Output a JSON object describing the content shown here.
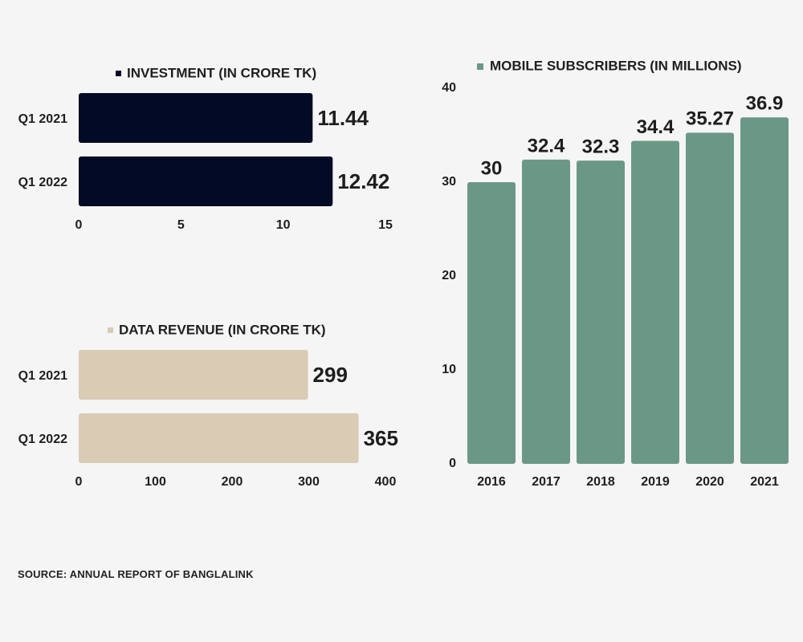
{
  "source": "SOURCE: ANNUAL REPORT OF BANGLALINK",
  "colors": {
    "investment": "#020a26",
    "data_revenue": "#d9cbb4",
    "subscribers": "#6b9886",
    "text": "#1e1e1e"
  },
  "chart_data": [
    {
      "id": "investment",
      "type": "bar",
      "orientation": "horizontal",
      "legend": "INVESTMENT (IN CRORE TK)",
      "categories": [
        "Q1 2021",
        "Q1 2022"
      ],
      "values": [
        11.44,
        12.42
      ],
      "value_labels": [
        "11.44",
        "12.42"
      ],
      "xlim": [
        0,
        15
      ],
      "xticks": [
        "0",
        "5",
        "10",
        "15"
      ],
      "grid": false
    },
    {
      "id": "data_revenue",
      "type": "bar",
      "orientation": "horizontal",
      "legend": "DATA REVENUE (IN CRORE TK)",
      "categories": [
        "Q1 2021",
        "Q1 2022"
      ],
      "values": [
        299,
        365
      ],
      "value_labels": [
        "299",
        "365"
      ],
      "xlim": [
        0,
        400
      ],
      "xticks": [
        "0",
        "100",
        "200",
        "300",
        "400"
      ],
      "grid": false
    },
    {
      "id": "subscribers",
      "type": "bar",
      "orientation": "vertical",
      "legend": "MOBILE SUBSCRIBERS (IN MILLIONS)",
      "categories": [
        "2016",
        "2017",
        "2018",
        "2019",
        "2020",
        "2021"
      ],
      "values": [
        30,
        32.4,
        32.3,
        34.4,
        35.27,
        36.9
      ],
      "value_labels": [
        "30",
        "32.4",
        "32.3",
        "34.4",
        "35.27",
        "36.9"
      ],
      "ylim": [
        0,
        40
      ],
      "yticks": [
        "0",
        "10",
        "20",
        "30",
        "40"
      ],
      "grid": false
    }
  ]
}
